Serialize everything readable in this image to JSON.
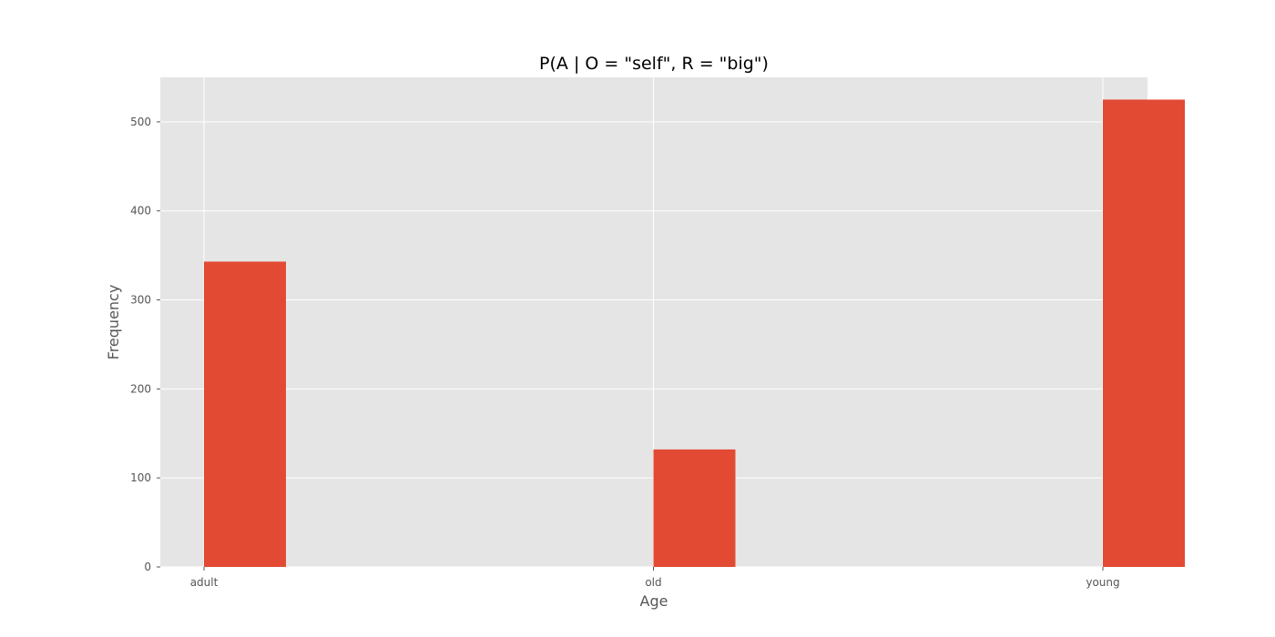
{
  "chart_data": {
    "type": "bar",
    "title": "P(A | O = \"self\", R = \"big\")",
    "xlabel": "Age",
    "ylabel": "Frequency",
    "categories": [
      "adult",
      "old",
      "young"
    ],
    "values": [
      343,
      132,
      525
    ],
    "ylim": [
      0,
      550
    ],
    "yticks": [
      0,
      100,
      200,
      300,
      400,
      500
    ],
    "grid": true,
    "legend": "none",
    "colors": {
      "bar": "#E24A33",
      "plot_background": "#E5E5E5",
      "grid": "#FFFFFF",
      "tick_text": "#555555",
      "title_text": "#000000"
    }
  }
}
